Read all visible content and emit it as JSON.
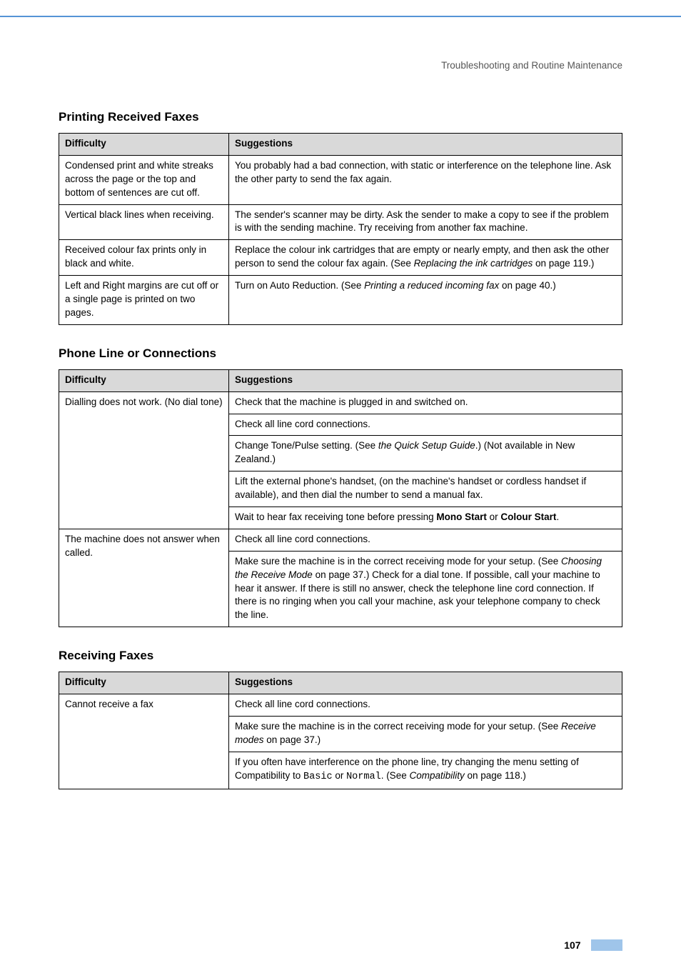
{
  "header_path": "Troubleshooting and Routine Maintenance",
  "page_number": "107",
  "column_headers": {
    "difficulty": "Difficulty",
    "suggestions": "Suggestions"
  },
  "sections": [
    {
      "title": "Printing Received Faxes",
      "rows": [
        {
          "difficulty": "Condensed print and white streaks across the page or the top and bottom of sentences are cut off.",
          "suggestions": [
            {
              "parts": [
                {
                  "t": "You probably had a bad connection, with static or interference on the telephone line. Ask the other party to send the fax again."
                }
              ]
            }
          ]
        },
        {
          "difficulty": "Vertical black lines when receiving.",
          "suggestions": [
            {
              "parts": [
                {
                  "t": "The sender's scanner may be dirty. Ask the sender to make a copy to see if the problem is with the sending machine. Try receiving from another fax machine."
                }
              ]
            }
          ]
        },
        {
          "difficulty": "Received colour fax prints only in black and white.",
          "suggestions": [
            {
              "parts": [
                {
                  "t": "Replace the colour ink cartridges that are empty or nearly empty, and then ask the other person to send the colour fax again. (See "
                },
                {
                  "t": "Replacing the ink cartridges",
                  "i": true
                },
                {
                  "t": " on page 119.)"
                }
              ]
            }
          ]
        },
        {
          "difficulty": "Left and Right margins are cut off or a single page is printed on two pages.",
          "suggestions": [
            {
              "parts": [
                {
                  "t": "Turn on Auto Reduction. (See "
                },
                {
                  "t": "Printing a reduced incoming fax",
                  "i": true
                },
                {
                  "t": " on page 40.)"
                }
              ]
            }
          ]
        }
      ]
    },
    {
      "title": "Phone Line or Connections",
      "rows": [
        {
          "difficulty": "Dialling does not work. (No dial tone)",
          "suggestions": [
            {
              "parts": [
                {
                  "t": "Check that the machine is plugged in and switched on."
                }
              ]
            },
            {
              "parts": [
                {
                  "t": "Check all line cord connections."
                }
              ]
            },
            {
              "parts": [
                {
                  "t": "Change Tone/Pulse setting. (See "
                },
                {
                  "t": "the Quick Setup Guide",
                  "i": true
                },
                {
                  "t": ".) (Not available in New Zealand.)"
                }
              ]
            },
            {
              "parts": [
                {
                  "t": "Lift the external phone's handset, (on the machine's handset or cordless handset if available), and then dial the number to send a manual fax."
                }
              ]
            },
            {
              "parts": [
                {
                  "t": "Wait to hear fax receiving tone before pressing "
                },
                {
                  "t": "Mono Start",
                  "b": true
                },
                {
                  "t": " or "
                },
                {
                  "t": "Colour Start",
                  "b": true
                },
                {
                  "t": "."
                }
              ]
            }
          ]
        },
        {
          "difficulty": "The machine does not answer when called.",
          "suggestions": [
            {
              "parts": [
                {
                  "t": "Check all line cord connections."
                }
              ]
            },
            {
              "parts": [
                {
                  "t": "Make sure the machine is in the correct receiving mode for your setup. (See "
                },
                {
                  "t": "Choosing the Receive Mode",
                  "i": true
                },
                {
                  "t": " on page 37.) Check for a dial tone. If possible, call your machine to hear it answer. If there is still no answer, check the telephone line cord connection. If there is no ringing when you call your machine, ask your telephone company to check the line."
                }
              ]
            }
          ]
        }
      ]
    },
    {
      "title": "Receiving Faxes",
      "rows": [
        {
          "difficulty": "Cannot receive a fax",
          "suggestions": [
            {
              "parts": [
                {
                  "t": "Check all line cord connections."
                }
              ]
            },
            {
              "parts": [
                {
                  "t": "Make sure the machine is in the correct receiving mode for your setup. (See "
                },
                {
                  "t": "Receive modes",
                  "i": true
                },
                {
                  "t": " on page 37.)"
                }
              ]
            },
            {
              "parts": [
                {
                  "t": "If you often have interference on the phone line, try changing the menu setting of Compatibility to "
                },
                {
                  "t": "Basic",
                  "m": true
                },
                {
                  "t": " or "
                },
                {
                  "t": "Normal",
                  "m": true
                },
                {
                  "t": ". (See "
                },
                {
                  "t": "Compatibility",
                  "i": true
                },
                {
                  "t": " on page 118.)"
                }
              ]
            }
          ]
        }
      ]
    }
  ]
}
